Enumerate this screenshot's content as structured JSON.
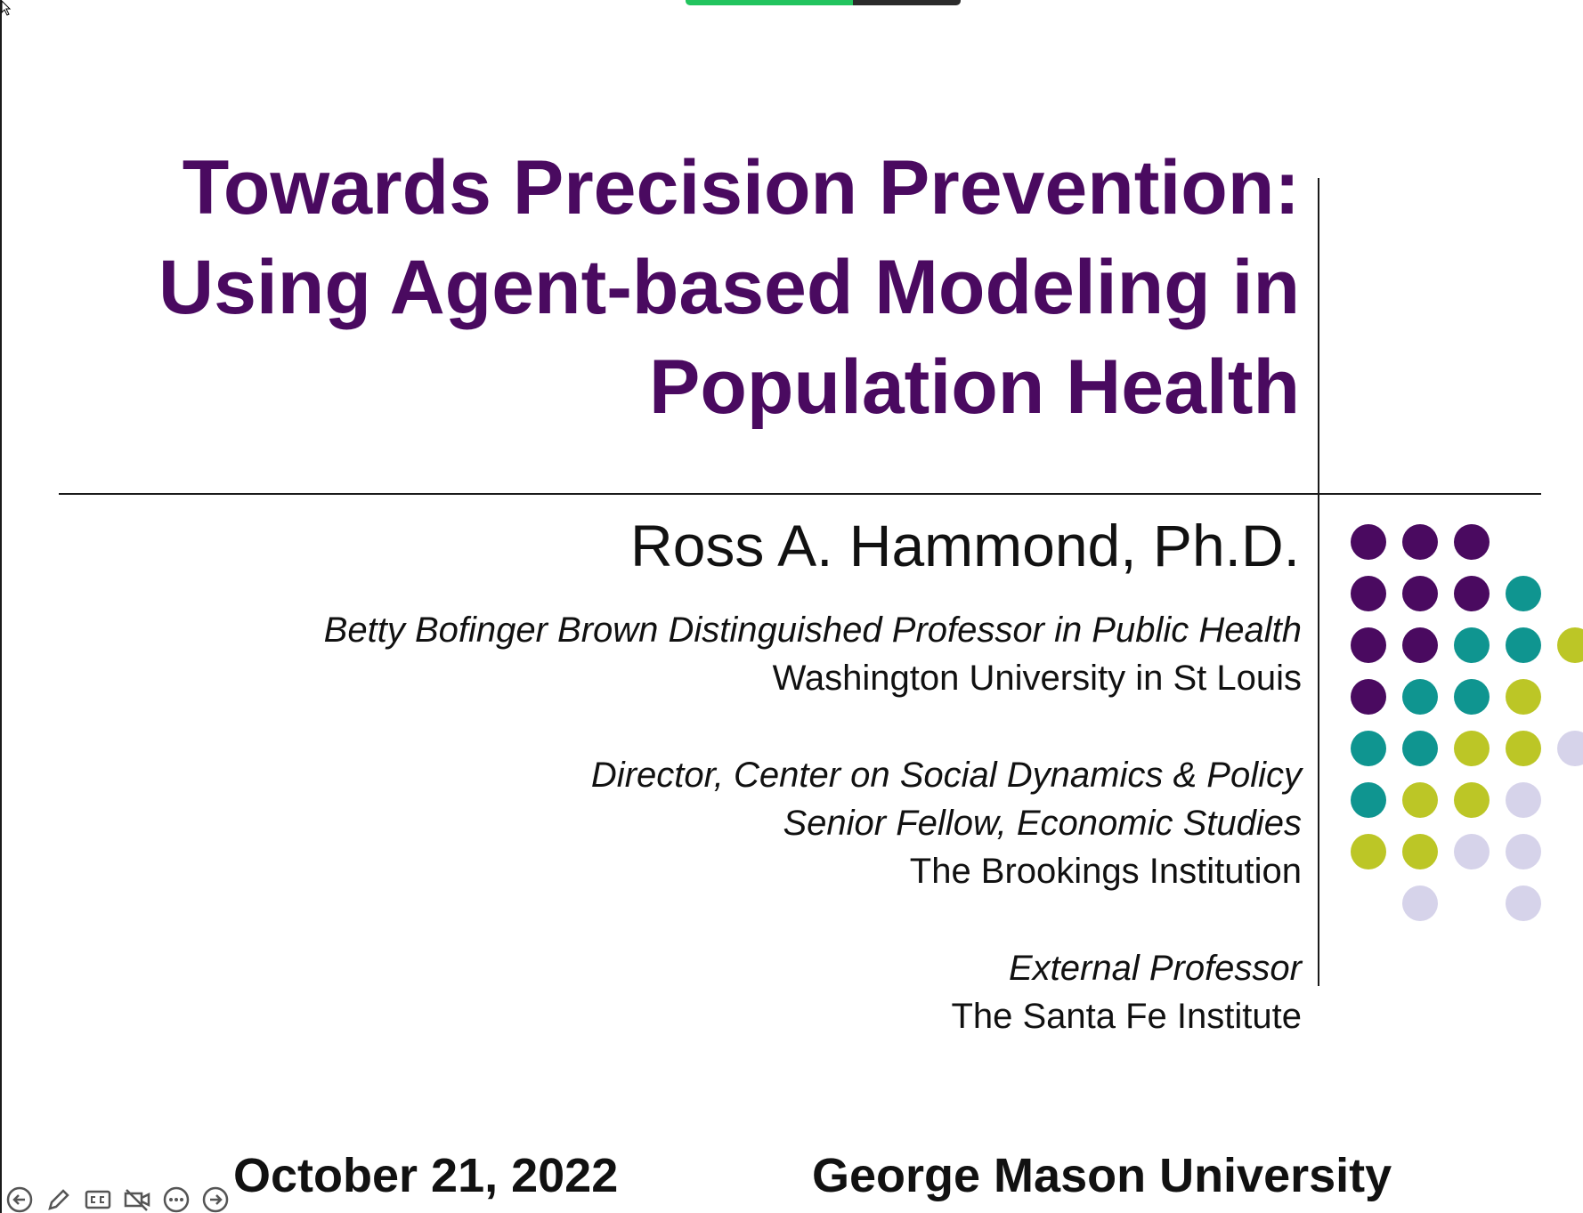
{
  "slide": {
    "title_lines": [
      "Towards Precision Prevention:",
      "Using Agent-based Modeling in",
      "Population Health"
    ],
    "author": "Ross A. Hammond, Ph.D.",
    "affiliations": [
      {
        "italic_lines": [
          "Betty Bofinger Brown Distinguished Professor in Public Health"
        ],
        "regular_lines": [
          "Washington University in St Louis"
        ]
      },
      {
        "italic_lines": [
          "Director, Center on Social Dynamics & Policy",
          "Senior Fellow, Economic Studies"
        ],
        "regular_lines": [
          "The Brookings Institution"
        ]
      },
      {
        "italic_lines": [
          "External Professor"
        ],
        "regular_lines": [
          "The Santa Fe Institute"
        ]
      }
    ],
    "date": "October 21, 2022",
    "venue": "George Mason University",
    "colors": {
      "title": "#4a0a60",
      "dot_purple": "#4a0a60",
      "dot_teal": "#0f9590",
      "dot_lime": "#bcc626",
      "dot_lavender": "#d6d3ea"
    },
    "dot_grid": [
      [
        "purple",
        "purple",
        "purple",
        null,
        null
      ],
      [
        "purple",
        "purple",
        "purple",
        "teal",
        null
      ],
      [
        "purple",
        "purple",
        "teal",
        "teal",
        "lime"
      ],
      [
        "purple",
        "teal",
        "teal",
        "lime",
        null
      ],
      [
        "teal",
        "teal",
        "lime",
        "lime",
        "lavender"
      ],
      [
        "teal",
        "lime",
        "lime",
        "lavender",
        null
      ],
      [
        "lime",
        "lime",
        "lavender",
        "lavender",
        null
      ],
      [
        null,
        "lavender",
        null,
        "lavender",
        null
      ]
    ]
  },
  "toolbar": {
    "icons": [
      "previous-slide-icon",
      "pen-icon",
      "captions-icon",
      "video-off-icon",
      "more-options-icon",
      "next-slide-icon"
    ]
  },
  "screen_share": {
    "indicator_colors": [
      "#22c45e",
      "#2b2b2b"
    ]
  }
}
